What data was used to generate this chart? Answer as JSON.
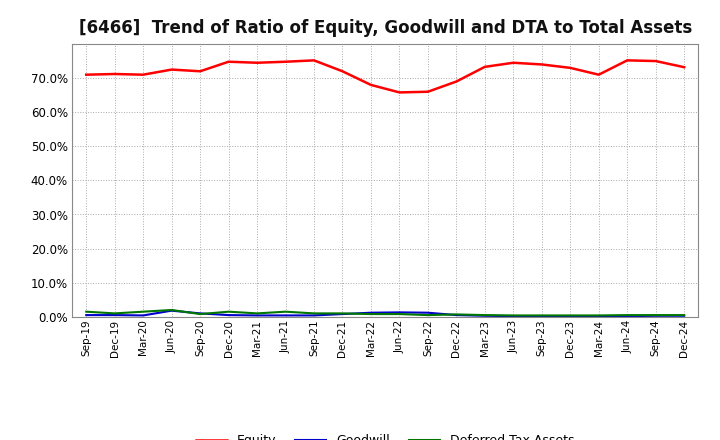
{
  "title": "[6466]  Trend of Ratio of Equity, Goodwill and DTA to Total Assets",
  "x_labels": [
    "Sep-19",
    "Dec-19",
    "Mar-20",
    "Jun-20",
    "Sep-20",
    "Dec-20",
    "Mar-21",
    "Jun-21",
    "Sep-21",
    "Dec-21",
    "Mar-22",
    "Jun-22",
    "Sep-22",
    "Dec-22",
    "Mar-23",
    "Jun-23",
    "Sep-23",
    "Dec-23",
    "Mar-24",
    "Jun-24",
    "Sep-24",
    "Dec-24"
  ],
  "equity": [
    0.71,
    0.712,
    0.71,
    0.725,
    0.72,
    0.748,
    0.745,
    0.748,
    0.752,
    0.72,
    0.68,
    0.658,
    0.66,
    0.69,
    0.733,
    0.745,
    0.74,
    0.73,
    0.71,
    0.752,
    0.75,
    0.732
  ],
  "goodwill": [
    0.005,
    0.005,
    0.004,
    0.018,
    0.01,
    0.005,
    0.004,
    0.004,
    0.004,
    0.008,
    0.012,
    0.013,
    0.012,
    0.005,
    0.003,
    0.002,
    0.002,
    0.002,
    0.002,
    0.002,
    0.003,
    0.003
  ],
  "dta": [
    0.015,
    0.01,
    0.015,
    0.02,
    0.008,
    0.015,
    0.01,
    0.015,
    0.01,
    0.01,
    0.008,
    0.008,
    0.005,
    0.007,
    0.005,
    0.004,
    0.004,
    0.004,
    0.004,
    0.005,
    0.005,
    0.005
  ],
  "equity_color": "#FF0000",
  "goodwill_color": "#0000CC",
  "dta_color": "#007700",
  "ylim": [
    0.0,
    0.8
  ],
  "yticks": [
    0.0,
    0.1,
    0.2,
    0.3,
    0.4,
    0.5,
    0.6,
    0.7
  ],
  "background_color": "#FFFFFF",
  "plot_bg_color": "#FFFFFF",
  "grid_color": "#AAAAAA",
  "title_fontsize": 12
}
